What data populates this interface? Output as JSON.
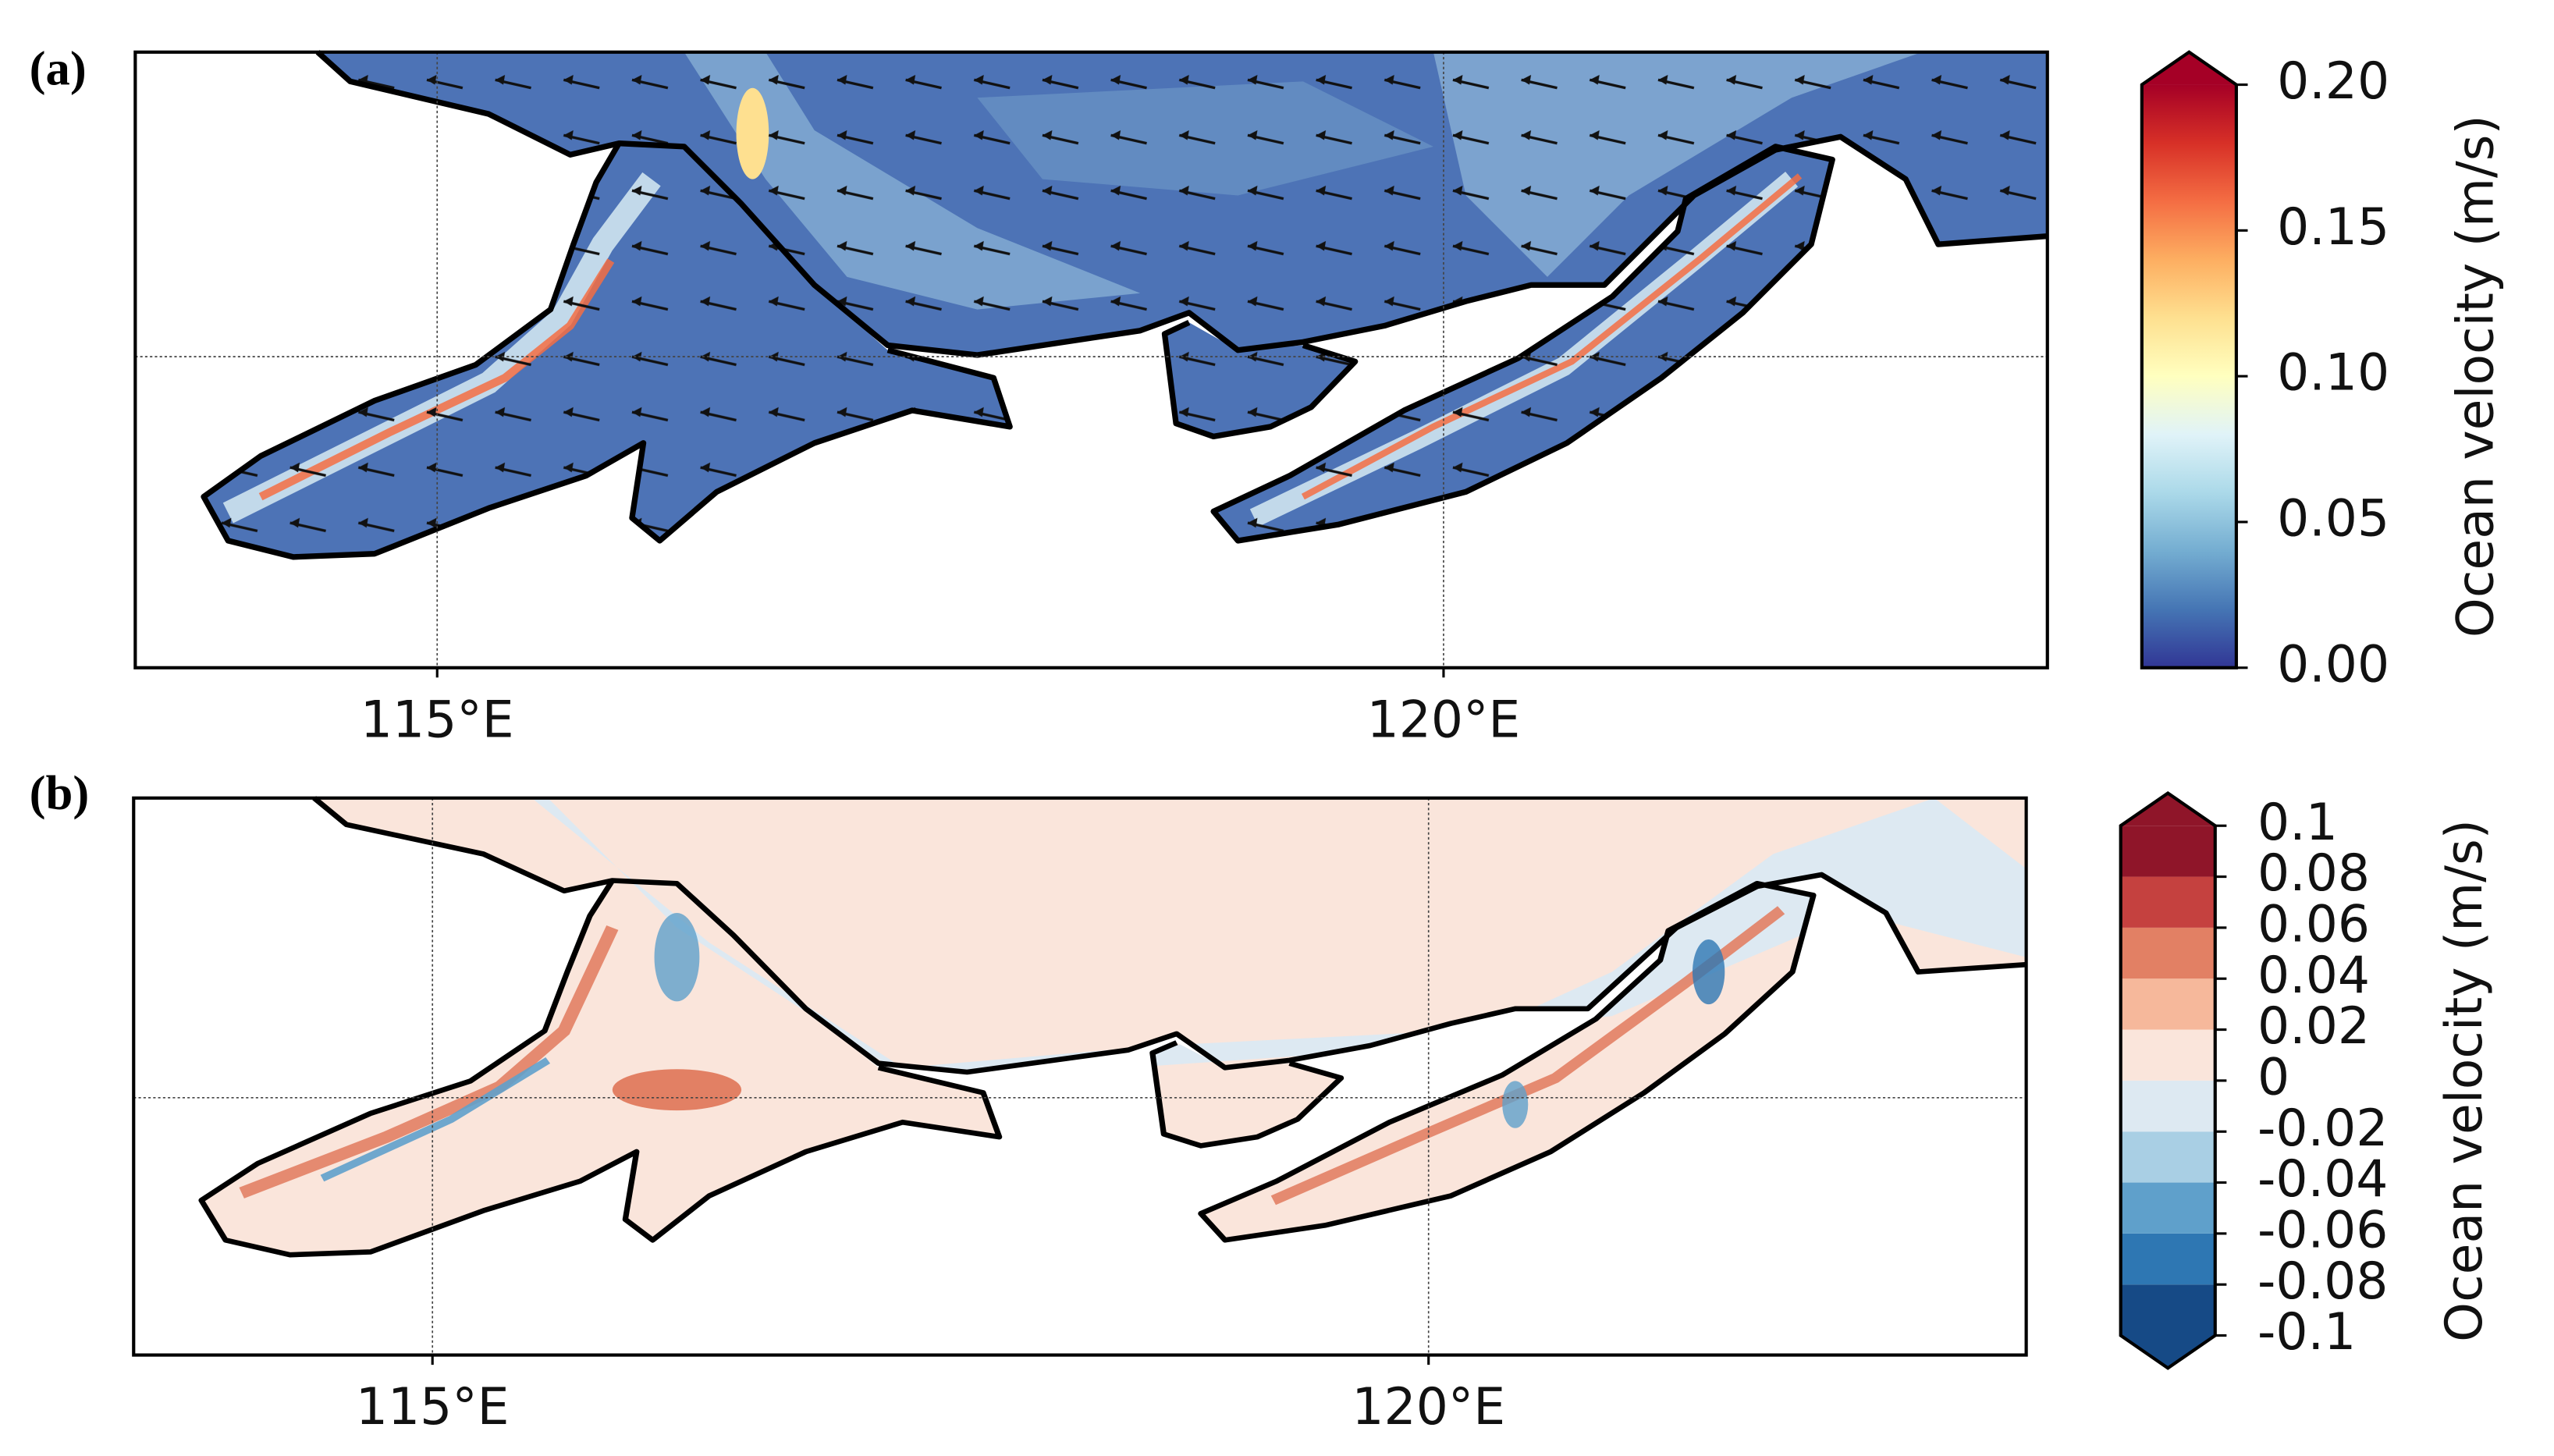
{
  "chart_data": [
    {
      "type": "map",
      "panel_label": "(a)",
      "xlim": [
        113.5,
        123
      ],
      "xticks": [
        {
          "value": 115,
          "label": "115°E"
        },
        {
          "value": 120,
          "label": "120°E"
        }
      ],
      "grid": true,
      "colorbar": {
        "label": "Ocean velocity (m/s)",
        "lim": [
          0,
          0.2
        ],
        "extend": "max",
        "style": "continuous",
        "ticks": [
          {
            "value": 0,
            "label": "0.00"
          },
          0.05,
          {
            "value": 0.1,
            "label": "0.10"
          },
          0.15,
          {
            "value": 0.2,
            "label": "0.20"
          }
        ],
        "colors": [
          "#313695",
          "#4575b4",
          "#74add1",
          "#abd9e9",
          "#e0f3f8",
          "#ffffbf",
          "#fee090",
          "#fdae61",
          "#f46d43",
          "#d73027",
          "#a50026"
        ]
      }
    },
    {
      "type": "map",
      "panel_label": "(b)",
      "xlim": [
        113.5,
        123
      ],
      "xticks": [
        {
          "value": 115,
          "label": "115°E"
        },
        {
          "value": 120,
          "label": "120°E"
        }
      ],
      "grid": true,
      "colorbar": {
        "label": "Ocean velocity (m/s)",
        "lim": [
          -0.1,
          0.1
        ],
        "extend": "both",
        "style": "discrete",
        "ticks": [
          -0.1,
          -0.08,
          -0.06,
          -0.04,
          -0.02,
          0,
          0.02,
          0.04,
          0.06,
          0.08,
          0.1
        ],
        "colors": [
          "#164a86",
          "#2e77b3",
          "#5fa0cb",
          "#a9cfe4",
          "#dde9f2",
          "#fae5db",
          "#f6b89b",
          "#e28064",
          "#c5413f",
          "#8f1529"
        ]
      }
    }
  ]
}
